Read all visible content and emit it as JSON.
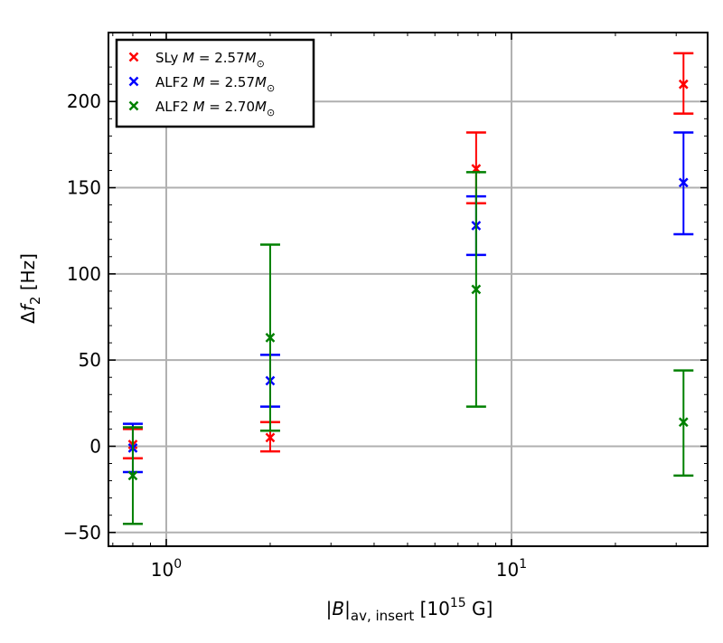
{
  "chart_data": {
    "type": "scatter",
    "x_scale": "log",
    "xlim": [
      0.68,
      37
    ],
    "ylim": [
      -58,
      240
    ],
    "grid": true,
    "legend_position": "top-left",
    "xlabel": "|B|av, insert [10^15 G]",
    "ylabel": "Δf2 [Hz]",
    "x_ticks": [
      {
        "value": 1,
        "base": "10",
        "exp": "0"
      },
      {
        "value": 10,
        "base": "10",
        "exp": "1"
      }
    ],
    "y_ticks": [
      {
        "value": -50,
        "label": "−50"
      },
      {
        "value": 0,
        "label": "0"
      },
      {
        "value": 50,
        "label": "50"
      },
      {
        "value": 100,
        "label": "100"
      },
      {
        "value": 150,
        "label": "150"
      },
      {
        "value": 200,
        "label": "200"
      }
    ],
    "series": [
      {
        "name": "SLy M = 2.57M⊙",
        "legend_eos": "SLy",
        "legend_mass": "2.57",
        "color": "#ff0000",
        "points": [
          {
            "x": 0.8,
            "y": 1,
            "low": -7,
            "high": 10
          },
          {
            "x": 2.0,
            "y": 5,
            "low": -3,
            "high": 14
          },
          {
            "x": 7.9,
            "y": 161,
            "low": 141,
            "high": 182
          },
          {
            "x": 31.5,
            "y": 210,
            "low": 193,
            "high": 228
          }
        ]
      },
      {
        "name": "ALF2 M = 2.57M⊙",
        "legend_eos": "ALF2",
        "legend_mass": "2.57",
        "color": "#0000ff",
        "points": [
          {
            "x": 0.8,
            "y": -1,
            "low": -15,
            "high": 13
          },
          {
            "x": 2.0,
            "y": 38,
            "low": 23,
            "high": 53
          },
          {
            "x": 7.9,
            "y": 128,
            "low": 111,
            "high": 145
          },
          {
            "x": 31.5,
            "y": 153,
            "low": 123,
            "high": 182
          }
        ]
      },
      {
        "name": "ALF2 M = 2.70M⊙",
        "legend_eos": "ALF2",
        "legend_mass": "2.70",
        "color": "#008000",
        "points": [
          {
            "x": 0.8,
            "y": -17,
            "low": -45,
            "high": 11
          },
          {
            "x": 2.0,
            "y": 63,
            "low": 9,
            "high": 117
          },
          {
            "x": 7.9,
            "y": 91,
            "low": 23,
            "high": 159
          },
          {
            "x": 31.5,
            "y": 14,
            "low": -17,
            "high": 44
          }
        ]
      }
    ]
  }
}
